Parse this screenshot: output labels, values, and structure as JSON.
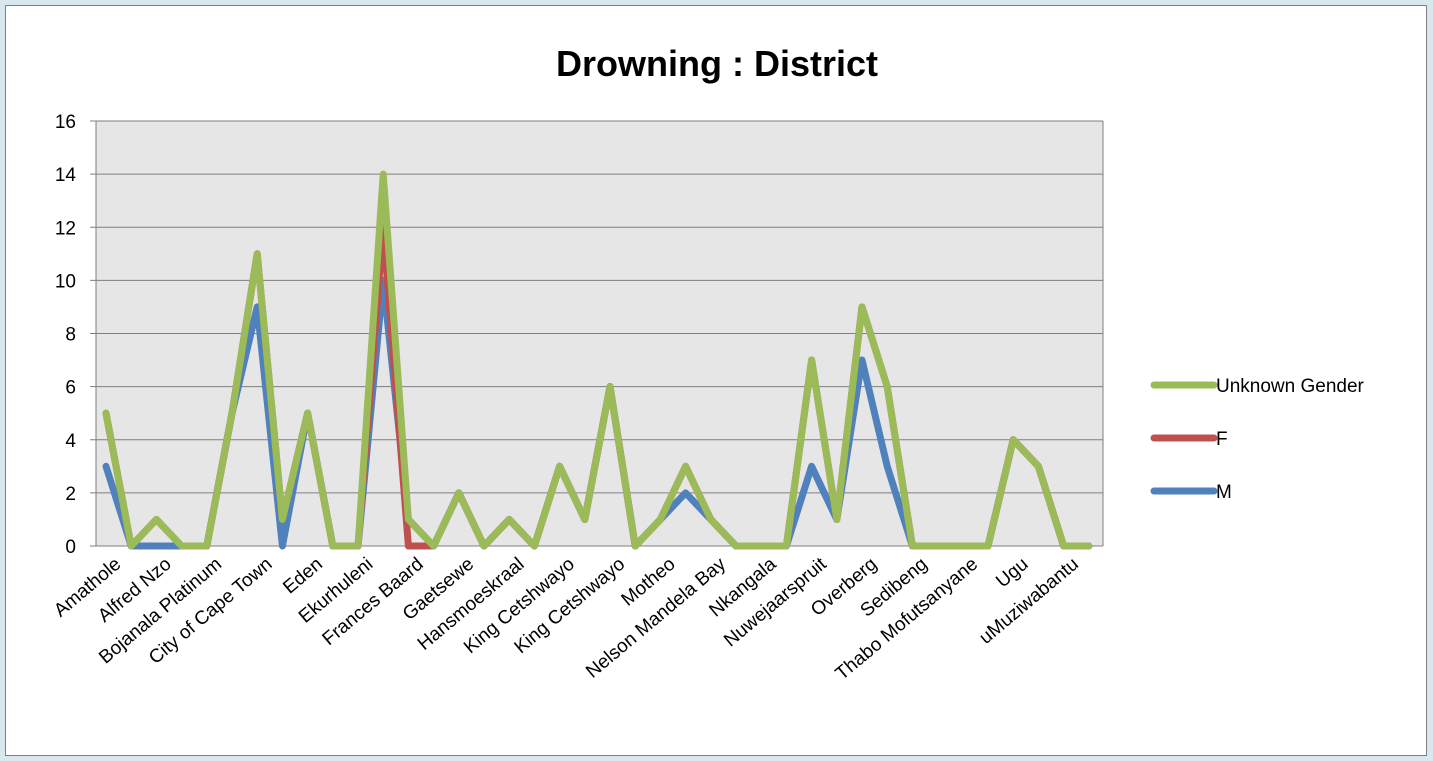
{
  "chart_data": {
    "type": "line",
    "title": "Drowning : District",
    "xlabel": "",
    "ylabel": "",
    "ylim": [
      0,
      16
    ],
    "yticks": [
      0,
      2,
      4,
      6,
      8,
      10,
      12,
      14,
      16
    ],
    "grid": true,
    "legend_position": "right",
    "categories": [
      "Amathole",
      "",
      "Alfred Nzo",
      "",
      "Bojanala Platinum",
      "",
      "City of Cape Town",
      "",
      "Eden",
      "",
      "Ekurhuleni",
      "",
      "Frances Baard",
      "",
      "Gaetsewe",
      "",
      "Hansmoeskraal",
      "",
      "King Cetshwayo",
      "",
      "King Cetshwayo",
      "",
      "Motheo",
      "",
      "Nelson Mandela Bay",
      "",
      "Nkangala",
      "",
      "Nuwejaarspruit",
      "",
      "Overberg",
      "",
      "Sedibeng",
      "",
      "Thabo Mofutsanyane",
      "",
      "Ugu",
      "",
      "uMuziwabantu",
      ""
    ],
    "series": [
      {
        "name": "M",
        "color": "#4f81bd",
        "values": [
          3,
          0,
          0,
          0,
          0,
          5,
          9,
          0,
          5,
          0,
          0,
          10,
          1,
          0,
          2,
          0,
          1,
          0,
          3,
          1,
          6,
          0,
          1,
          2,
          1,
          0,
          0,
          0,
          3,
          1,
          7,
          3,
          0,
          0,
          0,
          0,
          4,
          3,
          0,
          0
        ]
      },
      {
        "name": "F",
        "color": "#c0504d",
        "values": [
          5,
          0,
          1,
          0,
          0,
          5,
          11,
          1,
          5,
          0,
          0,
          12,
          0,
          0,
          2,
          0,
          1,
          0,
          3,
          1,
          6,
          0,
          1,
          3,
          1,
          0,
          0,
          0,
          7,
          1,
          9,
          6,
          0,
          0,
          0,
          0,
          4,
          3,
          0,
          0
        ]
      },
      {
        "name": "Unknown Gender",
        "color": "#9bbb59",
        "values": [
          5,
          0,
          1,
          0,
          0,
          5,
          11,
          1,
          5,
          0,
          0,
          14,
          1,
          0,
          2,
          0,
          1,
          0,
          3,
          1,
          6,
          0,
          1,
          3,
          1,
          0,
          0,
          0,
          7,
          1,
          9,
          6,
          0,
          0,
          0,
          0,
          4,
          3,
          0,
          0
        ]
      }
    ],
    "legend_order": [
      "Unknown Gender",
      "F",
      "M"
    ],
    "colors": {
      "plot_background": "#e6e6e6",
      "gridline": "#7f7f7f",
      "page_background": "#d9e8ee"
    }
  }
}
